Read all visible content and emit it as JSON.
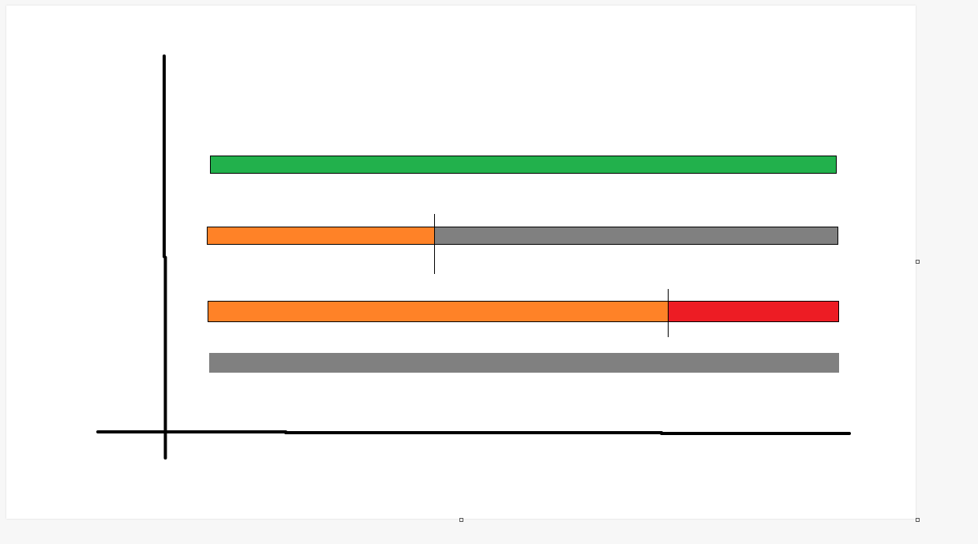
{
  "colors": {
    "background": "#f7f7f7",
    "canvas": "#ffffff",
    "axis": "#000000",
    "green": "#22b14c",
    "orange": "#ff8227",
    "gray": "#808080",
    "red": "#ed1c24"
  }
}
